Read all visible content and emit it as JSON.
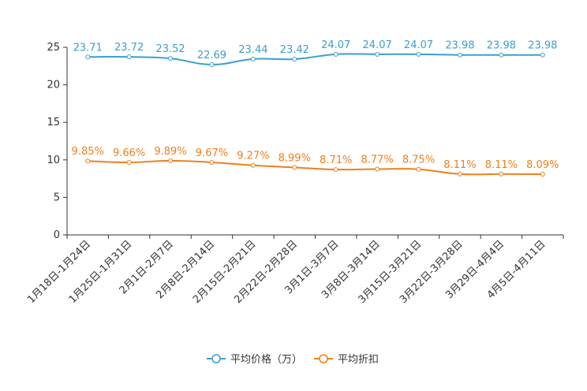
{
  "chart_data": {
    "type": "line",
    "title": "",
    "xlabel": "",
    "ylabel": "",
    "ylim": [
      0,
      25
    ],
    "yticks": [
      0,
      5,
      10,
      15,
      20,
      25
    ],
    "grid": false,
    "legend_position": "bottom-center",
    "categories": [
      "1月18日-1月24日",
      "1月25日-1月31日",
      "2月1日-2月7日",
      "2月8日-2月14日",
      "2月15日-2月21日",
      "2月22日-2月28日",
      "3月1日-3月7日",
      "3月8日-3月14日",
      "3月15日-3月21日",
      "3月22日-3月28日",
      "3月29日-4月4日",
      "4月5日-4月11日"
    ],
    "series": [
      {
        "name": "平均价格（万）",
        "color": "#3a9fd0",
        "values": [
          23.71,
          23.72,
          23.52,
          22.69,
          23.44,
          23.42,
          24.07,
          24.07,
          24.07,
          23.98,
          23.98,
          23.98
        ],
        "labels": [
          "23.71",
          "23.72",
          "23.52",
          "22.69",
          "23.44",
          "23.42",
          "24.07",
          "24.07",
          "24.07",
          "23.98",
          "23.98",
          "23.98"
        ]
      },
      {
        "name": "平均折扣",
        "color": "#f07f1a",
        "values": [
          9.85,
          9.66,
          9.89,
          9.67,
          9.27,
          8.99,
          8.71,
          8.77,
          8.75,
          8.11,
          8.11,
          8.09
        ],
        "labels": [
          "9.85%",
          "9.66%",
          "9.89%",
          "9.67%",
          "9.27%",
          "8.99%",
          "8.71%",
          "8.77%",
          "8.75%",
          "8.11%",
          "8.11%",
          "8.09%"
        ]
      }
    ]
  }
}
